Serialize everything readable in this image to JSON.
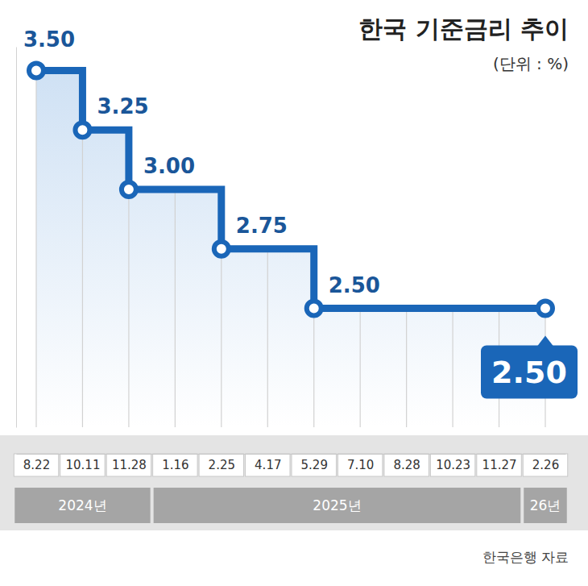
{
  "chart_data": {
    "type": "line",
    "title": "한국 기준금리 추이",
    "subtitle": "(단위 : %)",
    "source": "한국은행 자료",
    "categories": [
      "8.22",
      "10.11",
      "11.28",
      "1.16",
      "2.25",
      "4.17",
      "5.29",
      "7.10",
      "8.28",
      "10.23",
      "11.27",
      "2.26"
    ],
    "year_labels": [
      "2024년",
      "2024년",
      "2024년",
      "2025년",
      "2025년",
      "2025년",
      "2025년",
      "2025년",
      "2025년",
      "2025년",
      "2025년",
      "26년"
    ],
    "values": [
      3.5,
      3.25,
      3.0,
      3.0,
      2.75,
      2.75,
      2.5,
      2.5,
      2.5,
      2.5,
      2.5,
      2.5
    ],
    "value_labels": [
      "3.50",
      "3.25",
      "3.00",
      null,
      "2.75",
      null,
      "2.50",
      null,
      null,
      null,
      null,
      "2.50"
    ],
    "ylim": [
      2.0,
      3.6
    ],
    "yticks": [],
    "tick_labels": "x",
    "grid": true,
    "line_style": "step",
    "marker": "circle",
    "color": "#1a66b8",
    "data_labels": true
  }
}
